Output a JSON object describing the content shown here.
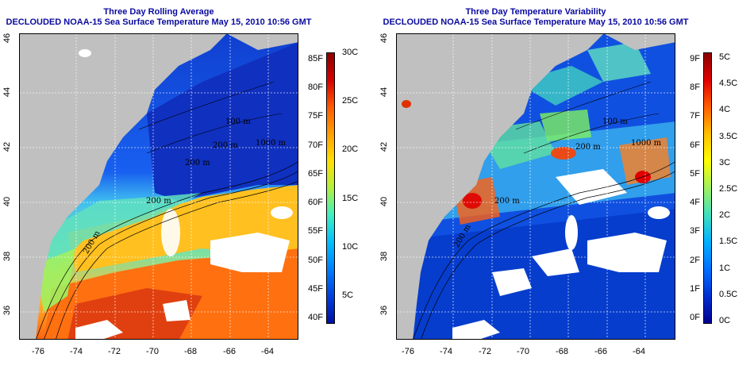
{
  "panels": [
    {
      "title_line1": "Three Day Rolling Average",
      "title_line2": "DECLOUDED NOAA-15 Sea Surface Temperature May 15, 2010 10:56 GMT",
      "colorbar": {
        "f_labels": [
          "85F",
          "80F",
          "75F",
          "70F",
          "65F",
          "60F",
          "55F",
          "50F",
          "45F",
          "40F"
        ],
        "c_labels": [
          "30C",
          "25C",
          "20C",
          "15C",
          "10C",
          "5C"
        ],
        "colors": [
          "#8b0000",
          "#d80000",
          "#ff5a00",
          "#ffa000",
          "#ffe000",
          "#b0f040",
          "#40f0c0",
          "#00c0ff",
          "#0080ff",
          "#0040e0",
          "#0010a0"
        ]
      },
      "depth_labels": [
        "100 m",
        "200 m",
        "1000 m",
        "200 m",
        "200 m",
        "200 m"
      ]
    },
    {
      "title_line1": "Three Day Temperature Variability",
      "title_line2": "DECLOUDED NOAA-15 Sea Surface Temperature May 15, 2010 10:56 GMT",
      "colorbar": {
        "f_labels": [
          "9F",
          "8F",
          "7F",
          "6F",
          "5F",
          "4F",
          "3F",
          "2F",
          "1F",
          "0F"
        ],
        "c_labels": [
          "5C",
          "4.5C",
          "4C",
          "3.5C",
          "3C",
          "2.5C",
          "2C",
          "1.5C",
          "1C",
          "0.5C",
          "0C"
        ],
        "colors": [
          "#8b0000",
          "#e00000",
          "#ff6000",
          "#ffc000",
          "#ffff00",
          "#a0f060",
          "#40e0c0",
          "#00b0ff",
          "#0070ff",
          "#0030d0",
          "#000090"
        ]
      },
      "depth_labels": [
        "100 m",
        "200 m",
        "1000 m",
        "200 m",
        "200 m"
      ]
    }
  ],
  "x_ticks": [
    "-76",
    "-74",
    "-72",
    "-70",
    "-68",
    "-66",
    "-64"
  ],
  "y_ticks": [
    "46",
    "44",
    "42",
    "40",
    "38",
    "36"
  ],
  "colors": {
    "title": "#0a0aa0",
    "land": "#c0c0c0",
    "cloud": "#ffffff"
  }
}
